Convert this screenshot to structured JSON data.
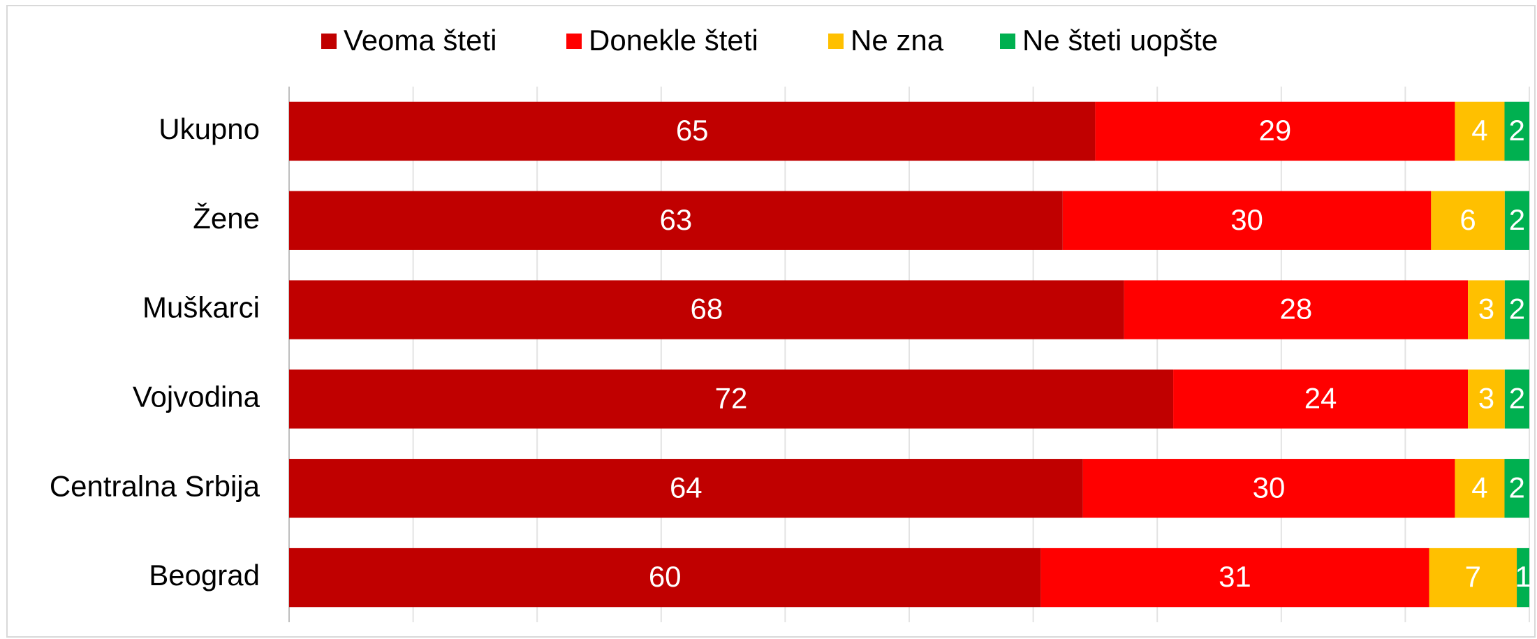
{
  "chart_data": {
    "type": "stacked-bar-horizontal",
    "stacking": "percent",
    "categories": [
      "Ukupno",
      "Žene",
      "Muškarci",
      "Vojvodina",
      "Centralna Srbija",
      "Beograd"
    ],
    "series": [
      {
        "name": "Veoma šteti",
        "color": "#c00000",
        "values": [
          65,
          63,
          68,
          72,
          64,
          60
        ]
      },
      {
        "name": "Donekle šteti",
        "color": "#ff0000",
        "values": [
          29,
          30,
          28,
          24,
          30,
          31
        ]
      },
      {
        "name": "Ne zna",
        "color": "#ffc000",
        "values": [
          4,
          6,
          3,
          3,
          4,
          7
        ]
      },
      {
        "name": "Ne šteti uopšte",
        "color": "#00b050",
        "values": [
          2,
          2,
          2,
          2,
          2,
          1
        ]
      }
    ],
    "xlim": [
      0,
      100
    ],
    "xticks": [
      0,
      10,
      20,
      30,
      40,
      50,
      60,
      70,
      80,
      90,
      100
    ],
    "grid": true,
    "legend": "top"
  }
}
